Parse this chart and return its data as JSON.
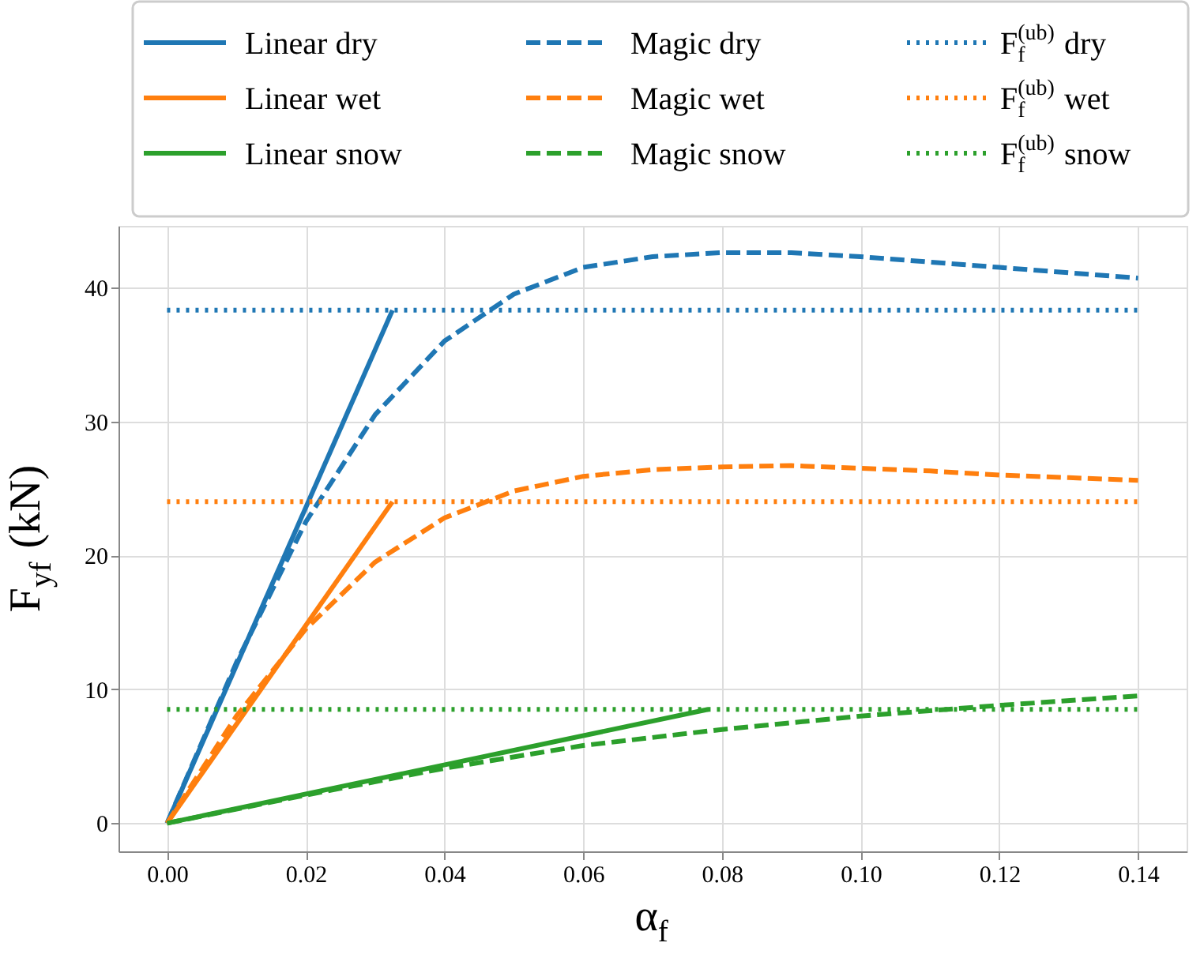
{
  "chart_data": {
    "type": "line",
    "xlabel": "α$_{f}$",
    "ylabel": "F$_{yf}$ (kN)",
    "xlim": [
      -0.007,
      0.147
    ],
    "ylim": [
      -2.1,
      44.6
    ],
    "xticks": [
      {
        "value": 0,
        "label": "0.00"
      },
      {
        "value": 0.02,
        "label": "0.02"
      },
      {
        "value": 0.04,
        "label": "0.04"
      },
      {
        "value": 0.06,
        "label": "0.06"
      },
      {
        "value": 0.08,
        "label": "0.08"
      },
      {
        "value": 0.1,
        "label": "0.10"
      },
      {
        "value": 0.12,
        "label": "0.12"
      },
      {
        "value": 0.14,
        "label": "0.14"
      }
    ],
    "yticks": [
      0,
      10,
      20,
      30,
      40
    ],
    "grid": true,
    "legend": "top",
    "marker": "none",
    "series": [
      {
        "name": "Linear dry",
        "color": "#1f77b4",
        "line_style": "solid",
        "x": [
          0,
          0.0325
        ],
        "values": [
          0,
          38.3
        ]
      },
      {
        "name": "Linear wet",
        "color": "#ff7f0e",
        "line_style": "solid",
        "x": [
          0,
          0.0325
        ],
        "values": [
          0,
          24.0
        ]
      },
      {
        "name": "Linear snow",
        "color": "#2ca02c",
        "line_style": "solid",
        "x": [
          0,
          0.078
        ],
        "values": [
          0,
          8.5
        ]
      },
      {
        "name": "Magic dry",
        "color": "#1f77b4",
        "line_style": "dashed",
        "x": [
          0,
          0.01,
          0.02,
          0.03,
          0.04,
          0.05,
          0.06,
          0.07,
          0.08,
          0.09,
          0.1,
          0.11,
          0.12,
          0.13,
          0.14
        ],
        "values": [
          0,
          12,
          22.5,
          30.5,
          36,
          39.5,
          41.5,
          42.3,
          42.6,
          42.6,
          42.3,
          41.9,
          41.5,
          41.1,
          40.7
        ]
      },
      {
        "name": "Magic wet",
        "color": "#ff7f0e",
        "line_style": "dashed",
        "x": [
          0,
          0.01,
          0.02,
          0.03,
          0.04,
          0.05,
          0.06,
          0.07,
          0.08,
          0.09,
          0.1,
          0.11,
          0.12,
          0.13,
          0.14
        ],
        "values": [
          0,
          8,
          14.5,
          19.5,
          22.8,
          24.8,
          25.9,
          26.4,
          26.6,
          26.7,
          26.5,
          26.3,
          26.0,
          25.8,
          25.6
        ]
      },
      {
        "name": "Magic snow",
        "color": "#2ca02c",
        "line_style": "dashed",
        "x": [
          0,
          0.02,
          0.04,
          0.06,
          0.08,
          0.1,
          0.12,
          0.14
        ],
        "values": [
          0,
          2.1,
          4.1,
          5.8,
          7.0,
          8.0,
          8.8,
          9.5
        ]
      },
      {
        "name": "F$_{f}$$^{(ub)}$ dry",
        "color": "#1f77b4",
        "line_style": "dotted",
        "x": [
          0,
          0.14
        ],
        "values": [
          38.3,
          38.3
        ]
      },
      {
        "name": "F$_{f}$$^{(ub)}$ wet",
        "color": "#ff7f0e",
        "line_style": "dotted",
        "x": [
          0,
          0.14
        ],
        "values": [
          24.0,
          24.0
        ]
      },
      {
        "name": "F$_{f}$$^{(ub)}$ snow",
        "color": "#2ca02c",
        "line_style": "dotted",
        "x": [
          0,
          0.14
        ],
        "values": [
          8.5,
          8.5
        ]
      }
    ]
  }
}
